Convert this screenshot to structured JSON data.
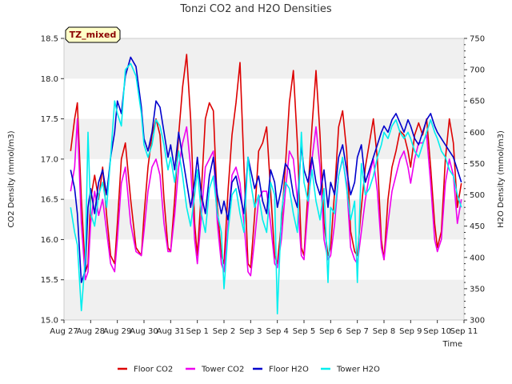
{
  "chart_data": {
    "type": "line",
    "title": "Tonzi CO2 and H2O Densities",
    "site_label": "TZ_mixed",
    "xlabel": "Time",
    "ylabel_left": "CO2 Density (mmol/m3)",
    "ylabel_right": "H2O Density (mmol/m3)",
    "ylim_left": [
      15.0,
      18.5
    ],
    "ylim_right": [
      300,
      750
    ],
    "yticks_left": [
      15.0,
      15.5,
      16.0,
      16.5,
      17.0,
      17.5,
      18.0,
      18.5
    ],
    "yticks_left_labels": [
      "15.0",
      "15.5",
      "16.0",
      "16.5",
      "17.0",
      "17.5",
      "18.0",
      "18.5"
    ],
    "yticks_right": [
      300,
      350,
      400,
      450,
      500,
      550,
      600,
      650,
      700,
      750
    ],
    "yticks_right_labels": [
      "300",
      "350",
      "400",
      "450",
      "500",
      "550",
      "600",
      "650",
      "700",
      "750"
    ],
    "xlim": [
      0,
      15
    ],
    "xticks": [
      0,
      1,
      2,
      3,
      4,
      5,
      6,
      7,
      8,
      9,
      10,
      11,
      12,
      13,
      14,
      15
    ],
    "xtick_labels": [
      "Aug 27",
      "Aug 28",
      "Aug 29",
      "Aug 30",
      "Aug 31",
      "Sep 1",
      "Sep 2",
      "Sep 3",
      "Sep 4",
      "Sep 5",
      "Sep 6",
      "Sep 7",
      "Sep 8",
      "Sep 9",
      "Sep 10",
      "Sep 11"
    ],
    "legend_position": "bottom-center",
    "series": [
      {
        "name": "Floor CO2",
        "color": "#dd0000",
        "axis": "left",
        "x": [
          0.25,
          0.4,
          0.5,
          0.65,
          0.8,
          0.9,
          1.0,
          1.15,
          1.3,
          1.45,
          1.6,
          1.75,
          1.9,
          2.0,
          2.15,
          2.3,
          2.5,
          2.7,
          2.9,
          3.0,
          3.15,
          3.3,
          3.45,
          3.6,
          3.75,
          3.9,
          4.0,
          4.15,
          4.3,
          4.45,
          4.6,
          4.75,
          4.9,
          5.0,
          5.15,
          5.3,
          5.45,
          5.6,
          5.75,
          5.9,
          6.0,
          6.15,
          6.3,
          6.45,
          6.6,
          6.75,
          6.9,
          7.0,
          7.15,
          7.3,
          7.45,
          7.6,
          7.75,
          7.9,
          8.0,
          8.15,
          8.3,
          8.45,
          8.6,
          8.75,
          8.9,
          9.0,
          9.15,
          9.3,
          9.45,
          9.6,
          9.75,
          9.9,
          10.0,
          10.15,
          10.3,
          10.45,
          10.6,
          10.75,
          10.9,
          11.0,
          11.15,
          11.3,
          11.45,
          11.6,
          11.75,
          11.9,
          12.0,
          12.15,
          12.3,
          12.45,
          12.6,
          12.75,
          12.9,
          13.0,
          13.15,
          13.3,
          13.45,
          13.6,
          13.75,
          13.9,
          14.0,
          14.15,
          14.3,
          14.45,
          14.6,
          14.75,
          14.9
        ],
        "values": [
          17.1,
          17.5,
          17.7,
          16.5,
          15.6,
          15.7,
          16.5,
          16.8,
          16.5,
          16.9,
          16.3,
          15.8,
          15.7,
          16.2,
          17.0,
          17.2,
          16.5,
          15.9,
          15.8,
          16.3,
          16.9,
          17.3,
          17.5,
          17.3,
          16.5,
          15.9,
          15.85,
          16.5,
          17.3,
          17.9,
          18.3,
          17.5,
          16.2,
          15.8,
          16.6,
          17.5,
          17.7,
          17.6,
          16.4,
          15.8,
          15.7,
          16.6,
          17.3,
          17.7,
          18.2,
          16.9,
          15.7,
          15.65,
          16.3,
          17.1,
          17.2,
          17.4,
          16.6,
          15.8,
          15.7,
          16.2,
          16.9,
          17.7,
          18.1,
          17.2,
          15.9,
          15.8,
          16.6,
          17.4,
          18.1,
          17.3,
          16.2,
          15.8,
          15.9,
          16.6,
          17.4,
          17.6,
          17.1,
          16.1,
          15.85,
          15.8,
          16.4,
          16.9,
          17.2,
          17.5,
          17.0,
          16.0,
          15.75,
          16.5,
          16.9,
          17.1,
          17.35,
          17.3,
          17.1,
          16.9,
          17.3,
          17.45,
          17.3,
          17.5,
          16.9,
          16.2,
          15.9,
          16.1,
          17.0,
          17.5,
          17.2,
          16.4,
          16.7
        ]
      },
      {
        "name": "Tower CO2",
        "color": "#ee00ee",
        "axis": "left",
        "x": [
          0.25,
          0.4,
          0.5,
          0.65,
          0.8,
          0.9,
          1.0,
          1.15,
          1.3,
          1.45,
          1.6,
          1.75,
          1.9,
          2.0,
          2.15,
          2.3,
          2.5,
          2.7,
          2.9,
          3.0,
          3.15,
          3.3,
          3.45,
          3.6,
          3.75,
          3.9,
          4.0,
          4.15,
          4.3,
          4.45,
          4.6,
          4.75,
          4.9,
          5.0,
          5.15,
          5.3,
          5.45,
          5.6,
          5.75,
          5.9,
          6.0,
          6.15,
          6.3,
          6.45,
          6.6,
          6.75,
          6.9,
          7.0,
          7.15,
          7.3,
          7.45,
          7.6,
          7.75,
          7.9,
          8.0,
          8.15,
          8.3,
          8.45,
          8.6,
          8.75,
          8.9,
          9.0,
          9.15,
          9.3,
          9.45,
          9.6,
          9.75,
          9.9,
          10.0,
          10.15,
          10.3,
          10.45,
          10.6,
          10.75,
          10.9,
          11.0,
          11.15,
          11.3,
          11.45,
          11.6,
          11.75,
          11.9,
          12.0,
          12.15,
          12.3,
          12.45,
          12.6,
          12.75,
          12.9,
          13.0,
          13.15,
          13.3,
          13.45,
          13.6,
          13.75,
          13.9,
          14.0,
          14.15,
          14.3,
          14.45,
          14.6,
          14.75,
          14.9
        ],
        "values": [
          16.6,
          16.9,
          17.5,
          16.2,
          15.5,
          15.6,
          16.2,
          16.6,
          16.3,
          16.5,
          16.1,
          15.7,
          15.6,
          16.0,
          16.7,
          16.9,
          16.2,
          15.85,
          15.8,
          16.1,
          16.6,
          16.9,
          17.0,
          16.8,
          16.2,
          15.85,
          15.85,
          16.3,
          16.9,
          17.2,
          17.4,
          16.9,
          16.0,
          15.7,
          16.3,
          16.9,
          17.0,
          17.1,
          16.2,
          15.7,
          15.6,
          16.2,
          16.8,
          16.9,
          16.7,
          16.2,
          15.6,
          15.55,
          16.0,
          16.5,
          16.6,
          16.6,
          16.2,
          15.7,
          15.65,
          16.0,
          16.6,
          17.1,
          17.0,
          16.5,
          15.8,
          15.75,
          16.4,
          17.0,
          17.4,
          16.9,
          16.0,
          15.75,
          15.8,
          16.2,
          16.8,
          17.0,
          16.7,
          15.9,
          15.75,
          15.7,
          16.1,
          16.5,
          16.8,
          17.0,
          16.6,
          15.9,
          15.75,
          16.2,
          16.6,
          16.8,
          17.0,
          17.1,
          16.9,
          16.7,
          17.0,
          17.2,
          17.2,
          17.3,
          16.7,
          16.0,
          15.85,
          16.0,
          16.7,
          17.0,
          16.8,
          16.2,
          16.5
        ]
      },
      {
        "name": "Floor H2O",
        "color": "#0000cc",
        "axis": "right",
        "x": [
          0.25,
          0.4,
          0.5,
          0.65,
          0.8,
          0.9,
          1.0,
          1.15,
          1.3,
          1.45,
          1.6,
          1.75,
          1.9,
          2.0,
          2.15,
          2.3,
          2.5,
          2.7,
          2.9,
          3.0,
          3.15,
          3.3,
          3.45,
          3.6,
          3.75,
          3.9,
          4.0,
          4.15,
          4.3,
          4.45,
          4.6,
          4.75,
          4.9,
          5.0,
          5.15,
          5.3,
          5.45,
          5.6,
          5.75,
          5.9,
          6.0,
          6.15,
          6.3,
          6.45,
          6.6,
          6.75,
          6.9,
          7.0,
          7.15,
          7.3,
          7.45,
          7.6,
          7.75,
          7.9,
          8.0,
          8.15,
          8.3,
          8.45,
          8.6,
          8.75,
          8.9,
          9.0,
          9.15,
          9.3,
          9.45,
          9.6,
          9.75,
          9.9,
          10.0,
          10.15,
          10.3,
          10.45,
          10.6,
          10.75,
          10.9,
          11.0,
          11.15,
          11.3,
          11.45,
          11.6,
          11.75,
          11.9,
          12.0,
          12.15,
          12.3,
          12.45,
          12.6,
          12.75,
          12.9,
          13.0,
          13.15,
          13.3,
          13.45,
          13.6,
          13.75,
          13.9,
          14.0,
          14.15,
          14.3,
          14.45,
          14.6,
          14.75,
          14.9
        ],
        "values": [
          540,
          510,
          470,
          360,
          380,
          480,
          510,
          470,
          520,
          540,
          500,
          560,
          600,
          650,
          630,
          690,
          720,
          705,
          640,
          590,
          570,
          600,
          650,
          640,
          600,
          560,
          580,
          540,
          600,
          560,
          520,
          480,
          520,
          560,
          500,
          470,
          530,
          560,
          500,
          470,
          490,
          460,
          520,
          530,
          500,
          470,
          560,
          540,
          510,
          530,
          490,
          470,
          540,
          520,
          480,
          510,
          550,
          540,
          500,
          480,
          580,
          540,
          520,
          560,
          520,
          500,
          540,
          480,
          520,
          500,
          560,
          580,
          540,
          500,
          520,
          560,
          580,
          520,
          540,
          560,
          580,
          600,
          610,
          600,
          620,
          630,
          615,
          600,
          620,
          610,
          590,
          580,
          600,
          620,
          630,
          610,
          600,
          590,
          580,
          570,
          560,
          540,
          520
        ]
      },
      {
        "name": "Tower H2O",
        "color": "#00eeee",
        "axis": "right",
        "x": [
          0.25,
          0.4,
          0.5,
          0.65,
          0.8,
          0.9,
          1.0,
          1.15,
          1.3,
          1.45,
          1.6,
          1.75,
          1.9,
          2.0,
          2.15,
          2.3,
          2.5,
          2.7,
          2.9,
          3.0,
          3.15,
          3.3,
          3.45,
          3.6,
          3.75,
          3.9,
          4.0,
          4.15,
          4.3,
          4.45,
          4.6,
          4.75,
          4.9,
          5.0,
          5.15,
          5.3,
          5.45,
          5.6,
          5.75,
          5.9,
          6.0,
          6.15,
          6.3,
          6.45,
          6.6,
          6.75,
          6.9,
          7.0,
          7.15,
          7.3,
          7.45,
          7.6,
          7.75,
          7.9,
          8.0,
          8.15,
          8.3,
          8.45,
          8.6,
          8.75,
          8.9,
          9.0,
          9.15,
          9.3,
          9.45,
          9.6,
          9.75,
          9.9,
          10.0,
          10.15,
          10.3,
          10.45,
          10.6,
          10.75,
          10.9,
          11.0,
          11.15,
          11.3,
          11.45,
          11.6,
          11.75,
          11.9,
          12.0,
          12.15,
          12.3,
          12.45,
          12.6,
          12.75,
          12.9,
          13.0,
          13.15,
          13.3,
          13.45,
          13.6,
          13.75,
          13.9,
          14.0,
          14.15,
          14.3,
          14.45,
          14.6,
          14.75,
          14.9
        ],
        "values": [
          480,
          440,
          420,
          315,
          400,
          600,
          470,
          450,
          500,
          520,
          480,
          560,
          650,
          630,
          610,
          700,
          710,
          690,
          630,
          580,
          560,
          580,
          620,
          610,
          580,
          540,
          560,
          520,
          570,
          530,
          480,
          450,
          500,
          540,
          470,
          440,
          510,
          530,
          470,
          440,
          350,
          440,
          500,
          510,
          470,
          440,
          560,
          520,
          480,
          500,
          460,
          440,
          520,
          500,
          310,
          470,
          520,
          510,
          470,
          440,
          600,
          520,
          490,
          540,
          490,
          460,
          510,
          360,
          480,
          470,
          530,
          560,
          510,
          460,
          490,
          360,
          550,
          500,
          510,
          530,
          560,
          580,
          600,
          590,
          610,
          620,
          600,
          590,
          600,
          590,
          570,
          560,
          580,
          600,
          620,
          600,
          590,
          570,
          560,
          540,
          530,
          500,
          480
        ]
      }
    ]
  }
}
